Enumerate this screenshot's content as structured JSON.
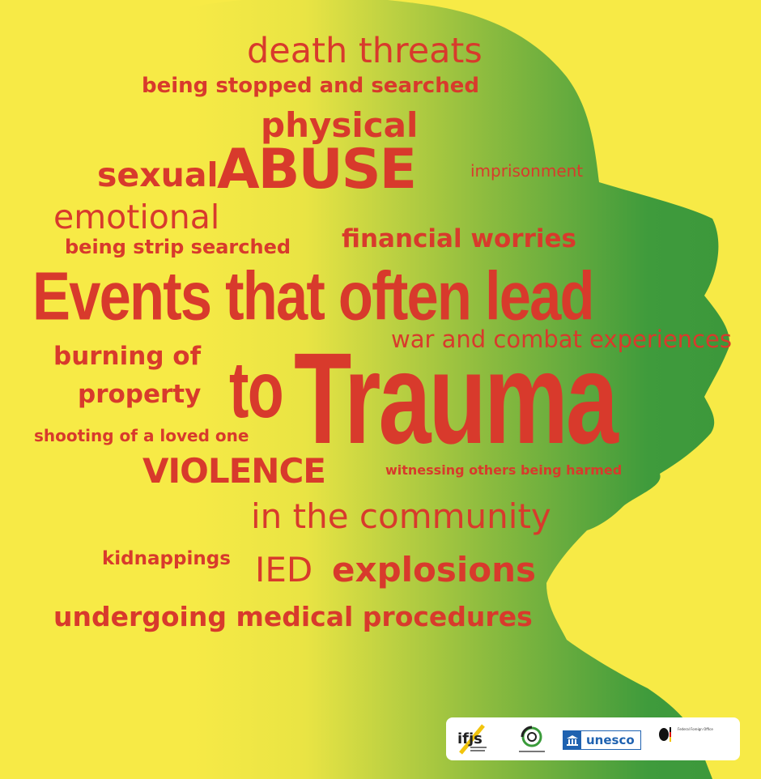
{
  "colors": {
    "background": "#f7ea46",
    "head_dark": "#3f9b3c",
    "head_light": "#e7e241",
    "text": "#d83a2c",
    "unesco_blue": "#1f62b0"
  },
  "words": {
    "death_threats": "death threats",
    "stopped_searched": "being stopped and searched",
    "physical": "physical",
    "sexual": "sexual",
    "abuse": "ABUSE",
    "imprisonment": "imprisonment",
    "emotional": "emotional",
    "strip_searched": "being strip searched",
    "financial": "financial worries",
    "events_line": "Events that often lead",
    "war": "war and combat experiences",
    "burning_of": "burning of",
    "property": "property",
    "to": "to",
    "trauma": "Trauma",
    "shooting": "shooting of a loved one",
    "violence": "VIOLENCE",
    "witnessing": "witnessing others being harmed",
    "community": "in the community",
    "kidnappings": "kidnappings",
    "ied": "IED",
    "explosions": "explosions",
    "medical": "undergoing medical procedures"
  },
  "logos": {
    "unesco_text": "unesco",
    "ffo_text": "Federal Foreign Office"
  }
}
